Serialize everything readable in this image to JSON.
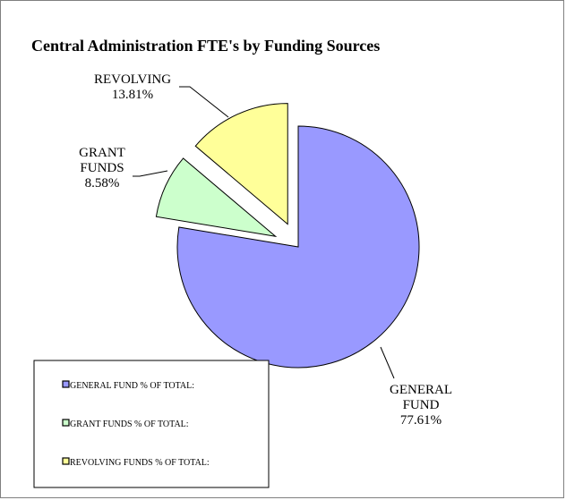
{
  "chart_data": {
    "type": "pie",
    "title": "Central Administration FTE's by Funding Sources",
    "slices": [
      {
        "label_lines": [
          "GENERAL",
          "FUND"
        ],
        "percent_label": "77.61%",
        "value": 77.61,
        "color": "#9999ff",
        "legend": "GENERAL FUND % OF TOTAL:"
      },
      {
        "label_lines": [
          "GRANT",
          "FUNDS"
        ],
        "percent_label": "8.58%",
        "value": 8.58,
        "color": "#ccffcc",
        "legend": "GRANT FUNDS % OF TOTAL:"
      },
      {
        "label_lines": [
          "REVOLVING"
        ],
        "percent_label": "13.81%",
        "value": 13.81,
        "color": "#ffff99",
        "legend": "REVOLVING FUNDS % OF TOTAL:"
      }
    ],
    "legend_position": "bottom-left",
    "exploded": true
  }
}
